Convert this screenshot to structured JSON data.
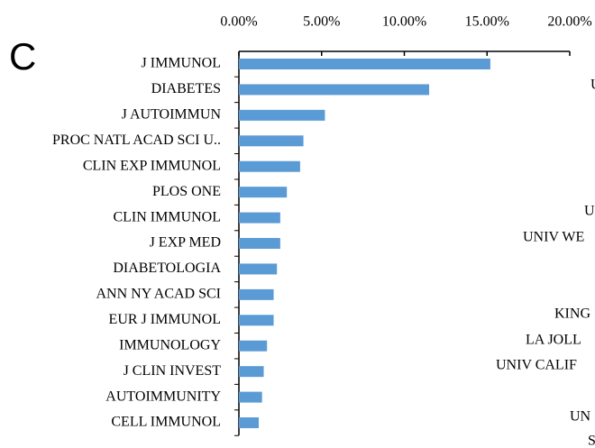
{
  "panel_label": "C",
  "chart_data": {
    "type": "barh",
    "categories": [
      "J IMMUNOL",
      "DIABETES",
      "J AUTOIMMUN",
      "PROC NATL ACAD SCI U..",
      "CLIN EXP IMMUNOL",
      "PLOS ONE",
      "CLIN IMMUNOL",
      "J EXP MED",
      "DIABETOLOGIA",
      "ANN NY ACAD SCI",
      "EUR J IMMUNOL",
      "IMMUNOLOGY",
      "J CLIN INVEST",
      "AUTOIMMUNITY",
      "CELL IMMUNOL"
    ],
    "values": [
      15.2,
      11.5,
      5.2,
      3.9,
      3.7,
      2.9,
      2.5,
      2.5,
      2.3,
      2.1,
      2.1,
      1.7,
      1.5,
      1.4,
      1.2
    ],
    "color": "#5b9bd5",
    "xlim": [
      0,
      20
    ],
    "xticks": [
      {
        "value": 0,
        "label": "0.00%"
      },
      {
        "value": 5,
        "label": "5.00%"
      },
      {
        "value": 10,
        "label": "10.00%"
      },
      {
        "value": 15,
        "label": "15.00%"
      },
      {
        "value": 20,
        "label": "20.00%"
      }
    ]
  },
  "neighbor_fragments": [
    "U",
    "U",
    "UNIV WE",
    "KING",
    "LA JOLL",
    "UNIV CALIF",
    "UN",
    "S"
  ]
}
